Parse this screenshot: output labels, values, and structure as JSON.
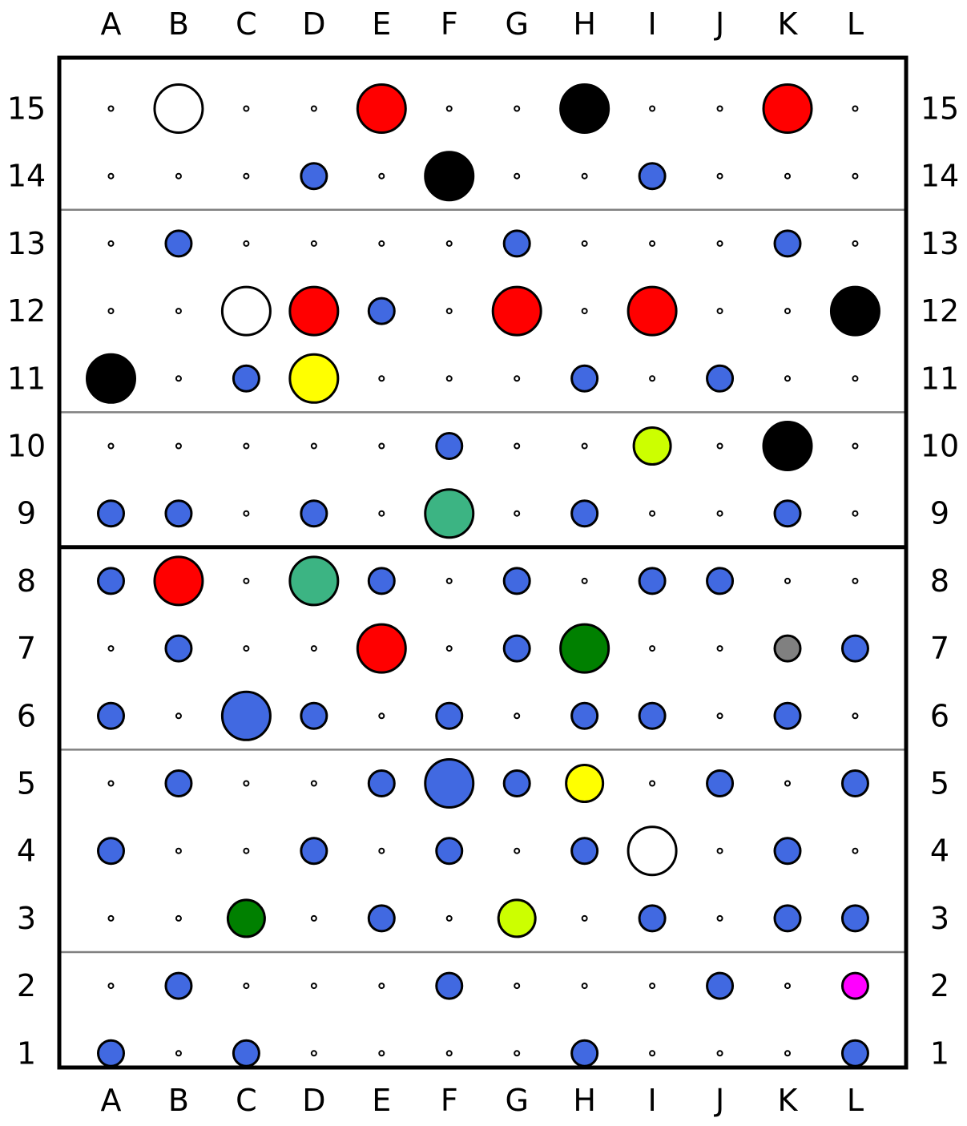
{
  "board": {
    "columns": [
      "A",
      "B",
      "C",
      "D",
      "E",
      "F",
      "G",
      "H",
      "I",
      "J",
      "K",
      "L"
    ],
    "rows": [
      "15",
      "14",
      "13",
      "12",
      "11",
      "10",
      "9",
      "8",
      "7",
      "6",
      "5",
      "4",
      "3",
      "2",
      "1"
    ],
    "colors": {
      "blue": "#4169e1",
      "red": "#ff0000",
      "black": "#000000",
      "white": "#ffffff",
      "yellow": "#ffff00",
      "lime": "#ccff00",
      "teal": "#3cb483",
      "green": "#008000",
      "gray": "#808080",
      "magenta": "#ff00ff",
      "divider_thin": "#808080",
      "divider_thick": "#000000"
    },
    "thin_divider_after_rows": [
      "14",
      "11",
      "6",
      "3"
    ],
    "thick_divider_after_rows": [
      "9"
    ],
    "pieces": [
      {
        "cell": "B15",
        "color": "white",
        "size": "large"
      },
      {
        "cell": "E15",
        "color": "red",
        "size": "large"
      },
      {
        "cell": "H15",
        "color": "black",
        "size": "large"
      },
      {
        "cell": "K15",
        "color": "red",
        "size": "large"
      },
      {
        "cell": "D14",
        "color": "blue",
        "size": "small"
      },
      {
        "cell": "F14",
        "color": "black",
        "size": "large"
      },
      {
        "cell": "I14",
        "color": "blue",
        "size": "small"
      },
      {
        "cell": "B13",
        "color": "blue",
        "size": "small"
      },
      {
        "cell": "G13",
        "color": "blue",
        "size": "small"
      },
      {
        "cell": "K13",
        "color": "blue",
        "size": "small"
      },
      {
        "cell": "C12",
        "color": "white",
        "size": "large"
      },
      {
        "cell": "D12",
        "color": "red",
        "size": "large"
      },
      {
        "cell": "E12",
        "color": "blue",
        "size": "small"
      },
      {
        "cell": "G12",
        "color": "red",
        "size": "large"
      },
      {
        "cell": "I12",
        "color": "red",
        "size": "large"
      },
      {
        "cell": "L12",
        "color": "black",
        "size": "large"
      },
      {
        "cell": "A11",
        "color": "black",
        "size": "large"
      },
      {
        "cell": "C11",
        "color": "blue",
        "size": "small"
      },
      {
        "cell": "D11",
        "color": "yellow",
        "size": "large"
      },
      {
        "cell": "H11",
        "color": "blue",
        "size": "small"
      },
      {
        "cell": "J11",
        "color": "blue",
        "size": "small"
      },
      {
        "cell": "F10",
        "color": "blue",
        "size": "small"
      },
      {
        "cell": "I10",
        "color": "lime",
        "size": "medium"
      },
      {
        "cell": "K10",
        "color": "black",
        "size": "large"
      },
      {
        "cell": "A9",
        "color": "blue",
        "size": "small"
      },
      {
        "cell": "B9",
        "color": "blue",
        "size": "small"
      },
      {
        "cell": "D9",
        "color": "blue",
        "size": "small"
      },
      {
        "cell": "F9",
        "color": "teal",
        "size": "large"
      },
      {
        "cell": "H9",
        "color": "blue",
        "size": "small"
      },
      {
        "cell": "K9",
        "color": "blue",
        "size": "small"
      },
      {
        "cell": "A8",
        "color": "blue",
        "size": "small"
      },
      {
        "cell": "B8",
        "color": "red",
        "size": "large"
      },
      {
        "cell": "D8",
        "color": "teal",
        "size": "large"
      },
      {
        "cell": "E8",
        "color": "blue",
        "size": "small"
      },
      {
        "cell": "G8",
        "color": "blue",
        "size": "small"
      },
      {
        "cell": "I8",
        "color": "blue",
        "size": "small"
      },
      {
        "cell": "J8",
        "color": "blue",
        "size": "small"
      },
      {
        "cell": "B7",
        "color": "blue",
        "size": "small"
      },
      {
        "cell": "E7",
        "color": "red",
        "size": "large"
      },
      {
        "cell": "G7",
        "color": "blue",
        "size": "small"
      },
      {
        "cell": "H7",
        "color": "green",
        "size": "large"
      },
      {
        "cell": "K7",
        "color": "gray",
        "size": "small"
      },
      {
        "cell": "L7",
        "color": "blue",
        "size": "small"
      },
      {
        "cell": "A6",
        "color": "blue",
        "size": "small"
      },
      {
        "cell": "C6",
        "color": "blue",
        "size": "large"
      },
      {
        "cell": "D6",
        "color": "blue",
        "size": "small"
      },
      {
        "cell": "F6",
        "color": "blue",
        "size": "small"
      },
      {
        "cell": "H6",
        "color": "blue",
        "size": "small"
      },
      {
        "cell": "I6",
        "color": "blue",
        "size": "small"
      },
      {
        "cell": "K6",
        "color": "blue",
        "size": "small"
      },
      {
        "cell": "B5",
        "color": "blue",
        "size": "small"
      },
      {
        "cell": "E5",
        "color": "blue",
        "size": "small"
      },
      {
        "cell": "F5",
        "color": "blue",
        "size": "large"
      },
      {
        "cell": "G5",
        "color": "blue",
        "size": "small"
      },
      {
        "cell": "H5",
        "color": "yellow",
        "size": "medium"
      },
      {
        "cell": "J5",
        "color": "blue",
        "size": "small"
      },
      {
        "cell": "L5",
        "color": "blue",
        "size": "small"
      },
      {
        "cell": "A4",
        "color": "blue",
        "size": "small"
      },
      {
        "cell": "D4",
        "color": "blue",
        "size": "small"
      },
      {
        "cell": "F4",
        "color": "blue",
        "size": "small"
      },
      {
        "cell": "H4",
        "color": "blue",
        "size": "small"
      },
      {
        "cell": "I4",
        "color": "white",
        "size": "large"
      },
      {
        "cell": "K4",
        "color": "blue",
        "size": "small"
      },
      {
        "cell": "C3",
        "color": "green",
        "size": "medium"
      },
      {
        "cell": "E3",
        "color": "blue",
        "size": "small"
      },
      {
        "cell": "G3",
        "color": "lime",
        "size": "medium"
      },
      {
        "cell": "I3",
        "color": "blue",
        "size": "small"
      },
      {
        "cell": "K3",
        "color": "blue",
        "size": "small"
      },
      {
        "cell": "L3",
        "color": "blue",
        "size": "small"
      },
      {
        "cell": "B2",
        "color": "blue",
        "size": "small"
      },
      {
        "cell": "F2",
        "color": "blue",
        "size": "small"
      },
      {
        "cell": "J2",
        "color": "blue",
        "size": "small"
      },
      {
        "cell": "L2",
        "color": "magenta",
        "size": "small"
      },
      {
        "cell": "A1",
        "color": "blue",
        "size": "small"
      },
      {
        "cell": "C1",
        "color": "blue",
        "size": "small"
      },
      {
        "cell": "H1",
        "color": "blue",
        "size": "small"
      },
      {
        "cell": "L1",
        "color": "blue",
        "size": "small"
      }
    ]
  }
}
